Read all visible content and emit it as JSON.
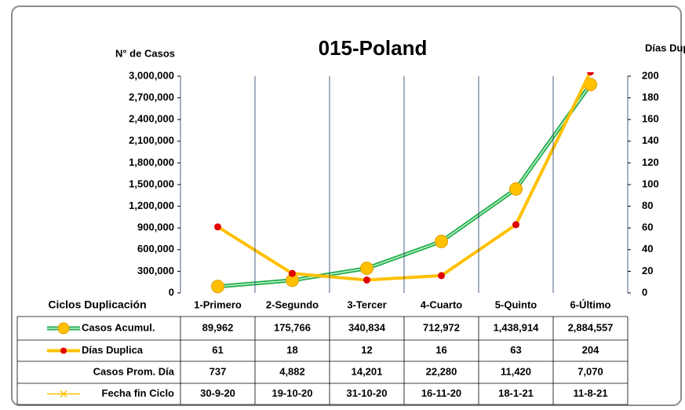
{
  "chart_data": {
    "type": "line",
    "title": "015-Poland",
    "y_label": "N° de Casos",
    "y2_label": "Días Duplicación",
    "category_label": "Ciclos Duplicación",
    "categories": [
      "1-Primero",
      "2-Segundo",
      "3-Tercer",
      "4-Cuarto",
      "5-Quinto",
      "6-Último"
    ],
    "series": [
      {
        "name": "Casos Acumul.",
        "color": "#1fae4b",
        "marker_color": "#ffc000",
        "values": [
          89962,
          175766,
          340834,
          712972,
          1438914,
          2884557
        ],
        "value_labels": [
          "89,962",
          "175,766",
          "340,834",
          "712,972",
          "1,438,914",
          "2,884,557"
        ]
      },
      {
        "name": "Días Duplica",
        "color": "#ffc000",
        "marker_color": "#e00000",
        "axis": "y2",
        "values": [
          61,
          18,
          12,
          16,
          63,
          204
        ]
      }
    ],
    "table_rows": [
      {
        "name": "Casos Prom. Día",
        "cells": [
          "737",
          "4,882",
          "14,201",
          "22,280",
          "11,420",
          "7,070"
        ]
      },
      {
        "name": "Fecha fin Ciclo",
        "color": "#ffc000",
        "cells": [
          "30-9-20",
          "19-10-20",
          "31-10-20",
          "16-11-20",
          "18-1-21",
          "11-8-21"
        ]
      }
    ],
    "ylim": [
      0,
      3000000
    ],
    "yticks": [
      0,
      {
        "value": 300000,
        "label": "300,000"
      },
      {
        "value": 600000,
        "label": "600,000"
      },
      {
        "value": 900000,
        "label": "900,000"
      },
      {
        "value": 1200000,
        "label": "1,200,000"
      },
      {
        "value": 1500000,
        "label": "1,500,000"
      },
      {
        "value": 1800000,
        "label": "1,800,000"
      },
      {
        "value": 2100000,
        "label": "2,100,000"
      },
      {
        "value": 2400000,
        "label": "2,400,000"
      },
      {
        "value": 2700000,
        "label": "2,700,000"
      },
      {
        "value": 3000000,
        "label": "3,000,000"
      }
    ],
    "y2lim": [
      0,
      200
    ],
    "y2ticks": [
      0,
      20,
      40,
      60,
      80,
      100,
      120,
      140,
      160,
      180,
      200
    ],
    "grid": true
  }
}
